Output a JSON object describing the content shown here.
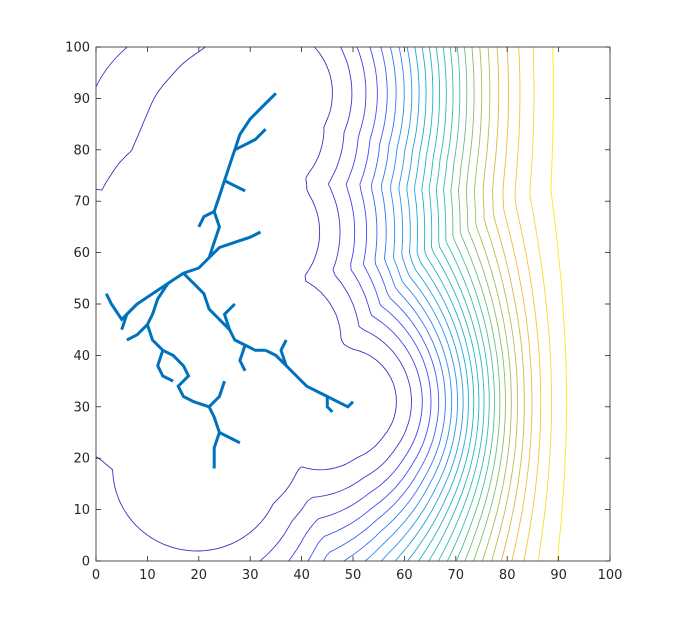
{
  "chart_data": {
    "type": "contour",
    "title": "",
    "xlabel": "",
    "ylabel": "",
    "xlim": [
      0,
      100
    ],
    "ylim": [
      0,
      100
    ],
    "grid": false,
    "box": true,
    "x_ticks": [
      "0",
      "10",
      "20",
      "30",
      "40",
      "50",
      "60",
      "70",
      "80",
      "90",
      "100"
    ],
    "y_ticks": [
      "0",
      "10",
      "20",
      "30",
      "40",
      "50",
      "60",
      "70",
      "80",
      "90",
      "100"
    ],
    "colormap": [
      "#3e26a8",
      "#4743f8",
      "#2d8cf4",
      "#18b2cf",
      "#3bbfa0",
      "#a3bd54",
      "#f8ba3d",
      "#f9fb15"
    ],
    "tree_color": "#0072bd",
    "contour_levels": 24,
    "tree_paths": [
      [
        [
          35,
          91
        ],
        [
          33,
          89
        ],
        [
          30,
          86
        ],
        [
          28,
          83
        ],
        [
          27,
          80
        ],
        [
          26,
          77
        ],
        [
          25,
          74
        ],
        [
          24,
          71
        ],
        [
          23,
          68
        ],
        [
          24,
          65
        ],
        [
          23,
          62
        ],
        [
          22,
          59
        ],
        [
          20,
          57
        ],
        [
          17,
          56
        ],
        [
          14,
          54
        ],
        [
          11,
          52
        ],
        [
          8,
          50
        ],
        [
          5,
          47
        ],
        [
          3,
          50
        ],
        [
          2,
          52
        ]
      ],
      [
        [
          22,
          59
        ],
        [
          24,
          61
        ],
        [
          27,
          62
        ],
        [
          30,
          63
        ],
        [
          32,
          64
        ]
      ],
      [
        [
          14,
          54
        ],
        [
          12,
          51
        ],
        [
          11,
          48
        ],
        [
          10,
          46
        ],
        [
          11,
          43
        ],
        [
          13,
          41
        ],
        [
          15,
          40
        ],
        [
          17,
          38
        ],
        [
          18,
          36
        ],
        [
          16,
          34
        ],
        [
          17,
          32
        ],
        [
          19,
          31
        ],
        [
          22,
          30
        ],
        [
          23,
          28
        ],
        [
          24,
          25
        ],
        [
          23,
          22
        ],
        [
          23,
          18
        ]
      ],
      [
        [
          8,
          50
        ],
        [
          6,
          48
        ],
        [
          5,
          45
        ]
      ],
      [
        [
          13,
          41
        ],
        [
          12,
          38
        ],
        [
          13,
          36
        ],
        [
          15,
          35
        ]
      ],
      [
        [
          22,
          30
        ],
        [
          24,
          32
        ],
        [
          25,
          35
        ]
      ],
      [
        [
          24,
          25
        ],
        [
          26,
          24
        ],
        [
          28,
          23
        ]
      ],
      [
        [
          17,
          56
        ],
        [
          19,
          54
        ],
        [
          21,
          52
        ],
        [
          22,
          49
        ],
        [
          24,
          47
        ],
        [
          26,
          45
        ],
        [
          27,
          43
        ],
        [
          29,
          42
        ],
        [
          31,
          41
        ],
        [
          33,
          41
        ]
      ],
      [
        [
          33,
          41
        ],
        [
          35,
          40
        ],
        [
          37,
          38
        ],
        [
          39,
          36
        ],
        [
          41,
          34
        ],
        [
          43,
          33
        ],
        [
          45,
          32
        ],
        [
          47,
          31
        ],
        [
          49,
          30
        ],
        [
          50,
          31
        ]
      ],
      [
        [
          26,
          45
        ],
        [
          25,
          48
        ],
        [
          27,
          50
        ]
      ],
      [
        [
          29,
          42
        ],
        [
          28,
          39
        ],
        [
          29,
          37
        ]
      ],
      [
        [
          37,
          38
        ],
        [
          36,
          41
        ],
        [
          37,
          43
        ]
      ],
      [
        [
          27,
          80
        ],
        [
          29,
          81
        ],
        [
          31,
          82
        ],
        [
          33,
          84
        ]
      ],
      [
        [
          25,
          74
        ],
        [
          27,
          73
        ],
        [
          29,
          72
        ]
      ],
      [
        [
          23,
          68
        ],
        [
          21,
          67
        ],
        [
          20,
          65
        ]
      ],
      [
        [
          10,
          46
        ],
        [
          8,
          44
        ],
        [
          6,
          43
        ]
      ],
      [
        [
          45,
          32
        ],
        [
          45,
          30
        ],
        [
          46,
          29
        ]
      ]
    ]
  }
}
